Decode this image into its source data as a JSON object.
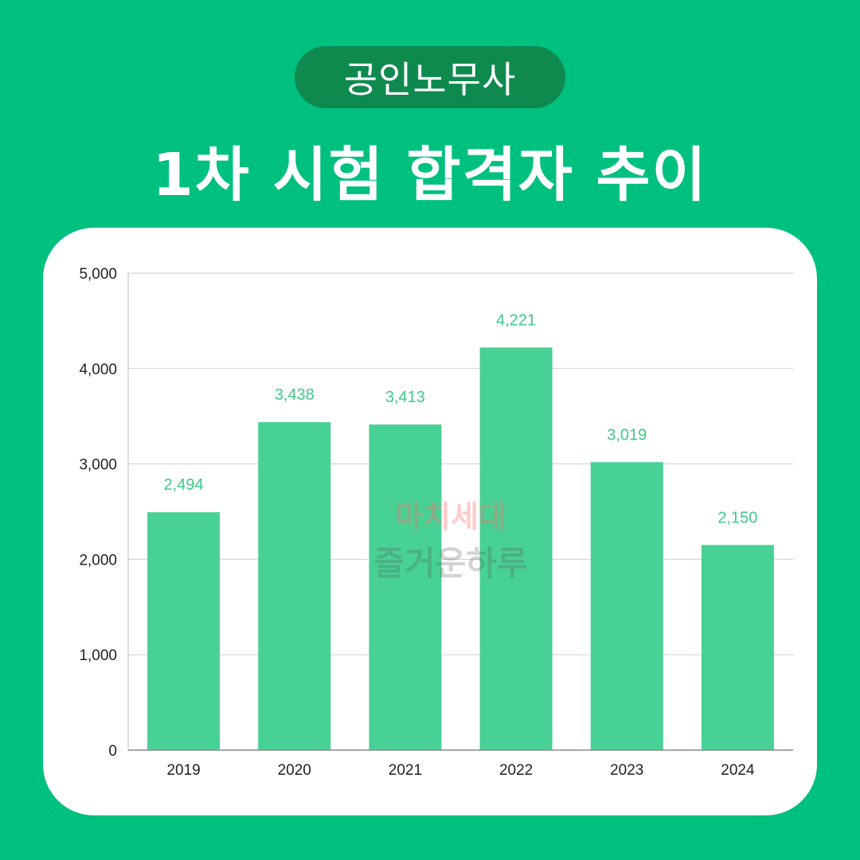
{
  "header": {
    "badge": "공인노무사",
    "title": "1차 시험 합격자 추이"
  },
  "colors": {
    "background": "#00c07f",
    "badge": "#0f8a4f",
    "bar": "#48d194",
    "label": "#3ec98a"
  },
  "watermark": {
    "line1": "마치세대",
    "line2": "즐거운하루"
  },
  "chart_data": {
    "type": "bar",
    "categories": [
      "2019",
      "2020",
      "2021",
      "2022",
      "2023",
      "2024"
    ],
    "values": [
      2494,
      3438,
      3413,
      4221,
      3019,
      2150
    ],
    "data_labels": [
      "2,494",
      "3,438",
      "3,413",
      "4,221",
      "3,019",
      "2,150"
    ],
    "yticks": [
      0,
      1000,
      2000,
      3000,
      4000,
      5000
    ],
    "ytick_labels": [
      "0",
      "1,000",
      "2,000",
      "3,000",
      "4,000",
      "5,000"
    ],
    "ylim": [
      0,
      5000
    ],
    "grid": true,
    "title": "",
    "xlabel": "",
    "ylabel": ""
  }
}
